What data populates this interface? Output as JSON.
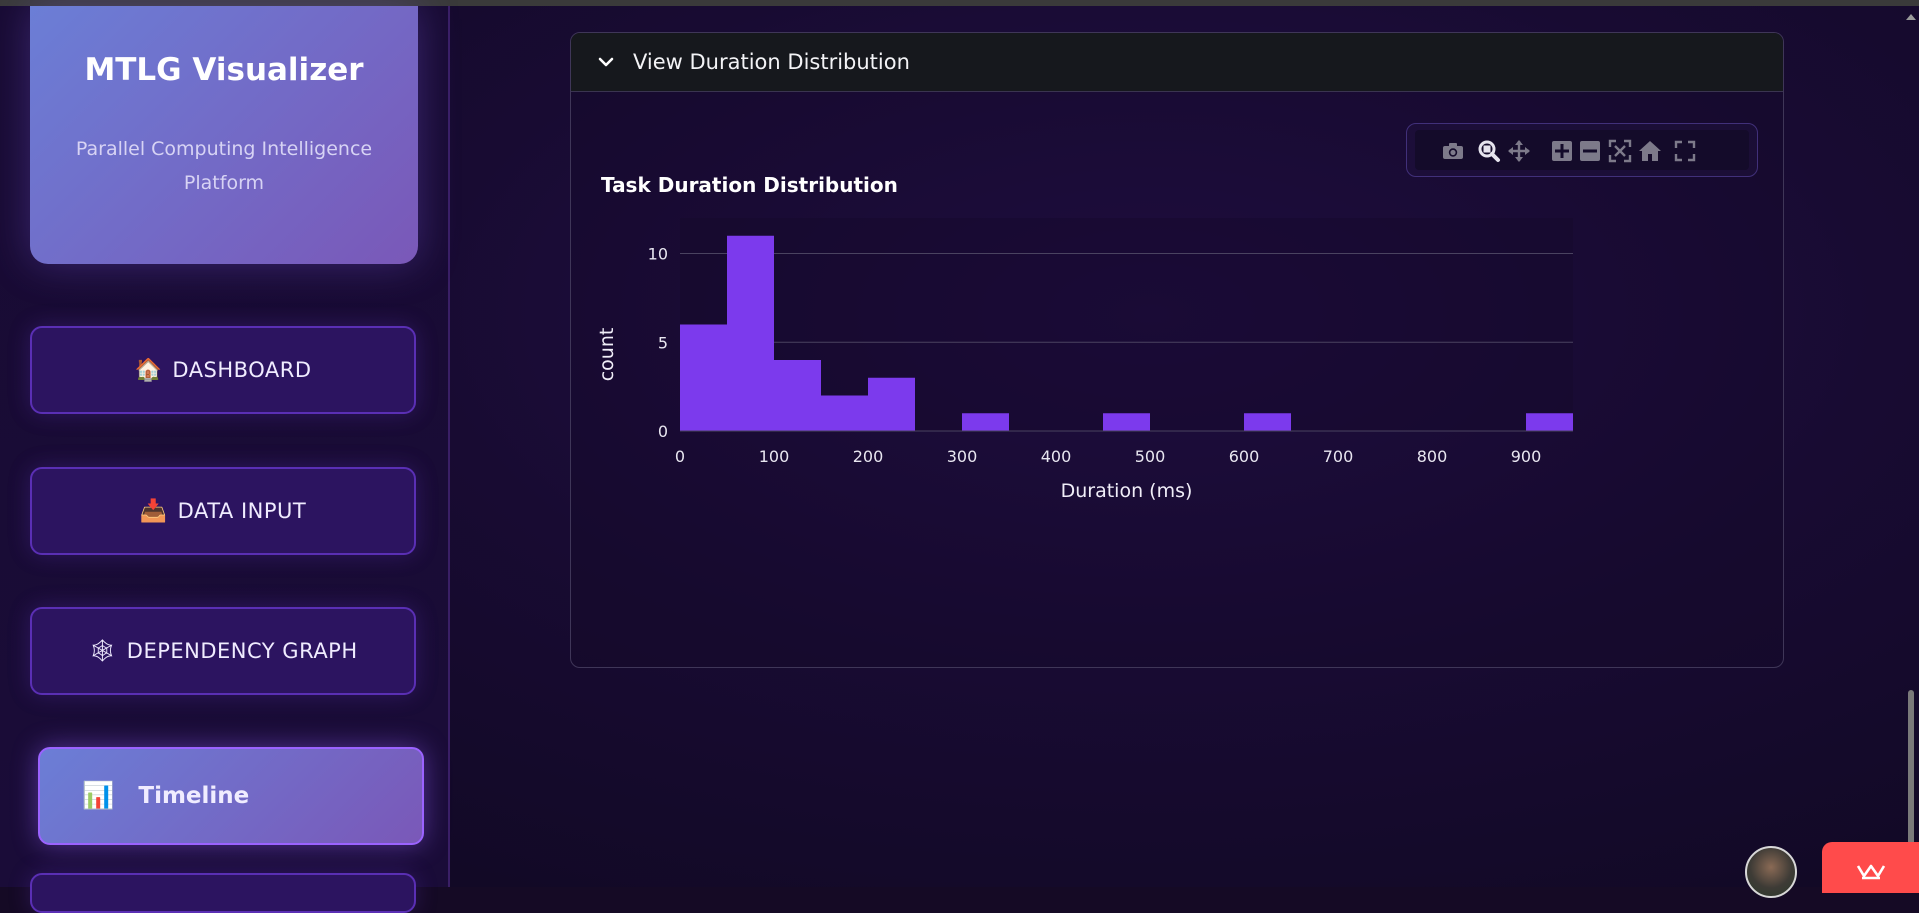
{
  "brand": {
    "title": "MTLG Visualizer",
    "subtitle": "Parallel Computing Intelligence Platform"
  },
  "nav": [
    {
      "icon": "🏠",
      "label": "DASHBOARD"
    },
    {
      "icon": "📥",
      "label": "DATA INPUT"
    },
    {
      "icon": "🕸",
      "label": "DEPENDENCY GRAPH"
    },
    {
      "icon": "📊",
      "label": "Timeline",
      "active": true
    }
  ],
  "expander": {
    "title": "View Duration Distribution"
  },
  "modebar": {
    "icons": [
      "camera-icon",
      "zoom-icon",
      "pan-icon",
      "zoom-in-icon",
      "zoom-out-icon",
      "autoscale-icon",
      "reset-axes-icon",
      "fullscreen-icon"
    ]
  },
  "chart_data": {
    "type": "bar",
    "title": "Task Duration Distribution",
    "xlabel": "Duration (ms)",
    "ylabel": "count",
    "bin_width": 50,
    "bins": [
      {
        "start": 0,
        "end": 50,
        "count": 6
      },
      {
        "start": 50,
        "end": 100,
        "count": 11
      },
      {
        "start": 100,
        "end": 150,
        "count": 4
      },
      {
        "start": 150,
        "end": 200,
        "count": 2
      },
      {
        "start": 200,
        "end": 250,
        "count": 3
      },
      {
        "start": 300,
        "end": 350,
        "count": 1
      },
      {
        "start": 450,
        "end": 500,
        "count": 1
      },
      {
        "start": 600,
        "end": 650,
        "count": 1
      },
      {
        "start": 900,
        "end": 950,
        "count": 1
      }
    ],
    "xlim": [
      0,
      950
    ],
    "ylim": [
      0,
      12
    ],
    "xticks": [
      0,
      100,
      200,
      300,
      400,
      500,
      600,
      700,
      800,
      900
    ],
    "yticks": [
      0,
      5,
      10
    ],
    "bar_color": "#7c3aed",
    "grid": true,
    "legend": "none"
  },
  "colors": {
    "accent": "#7c3aed",
    "sidebar_active": "#6b7ed6",
    "badge": "#ff4b4b"
  }
}
